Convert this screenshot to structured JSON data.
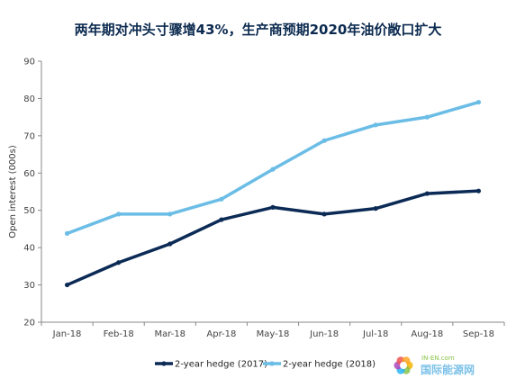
{
  "chart_data": {
    "type": "line",
    "title": "两年期对冲头寸骤增43%，生产商预期2020年油价敞口扩大",
    "ylabel": "Open interest (000s)",
    "xlabel": "",
    "categories": [
      "Jan-18",
      "Feb-18",
      "Mar-18",
      "Apr-18",
      "May-18",
      "Jun-18",
      "Jul-18",
      "Aug-18",
      "Sep-18"
    ],
    "ylim": [
      20,
      90
    ],
    "yticks": [
      20,
      30,
      40,
      50,
      60,
      70,
      80,
      90
    ],
    "grid": false,
    "legend_position": "bottom",
    "series": [
      {
        "name": "2-year hedge (2017)",
        "color": "#0b2a55",
        "values": [
          30,
          36,
          41,
          47.5,
          50.8,
          49,
          50.5,
          54.5,
          55.2
        ]
      },
      {
        "name": "2-year hedge (2018)",
        "color": "#6bbde6",
        "values": [
          43.8,
          49,
          49,
          53,
          61,
          68.7,
          72.9,
          75,
          79
        ]
      }
    ]
  },
  "watermark": {
    "text": "国际能源网",
    "subtext": "IN-EN.com"
  }
}
